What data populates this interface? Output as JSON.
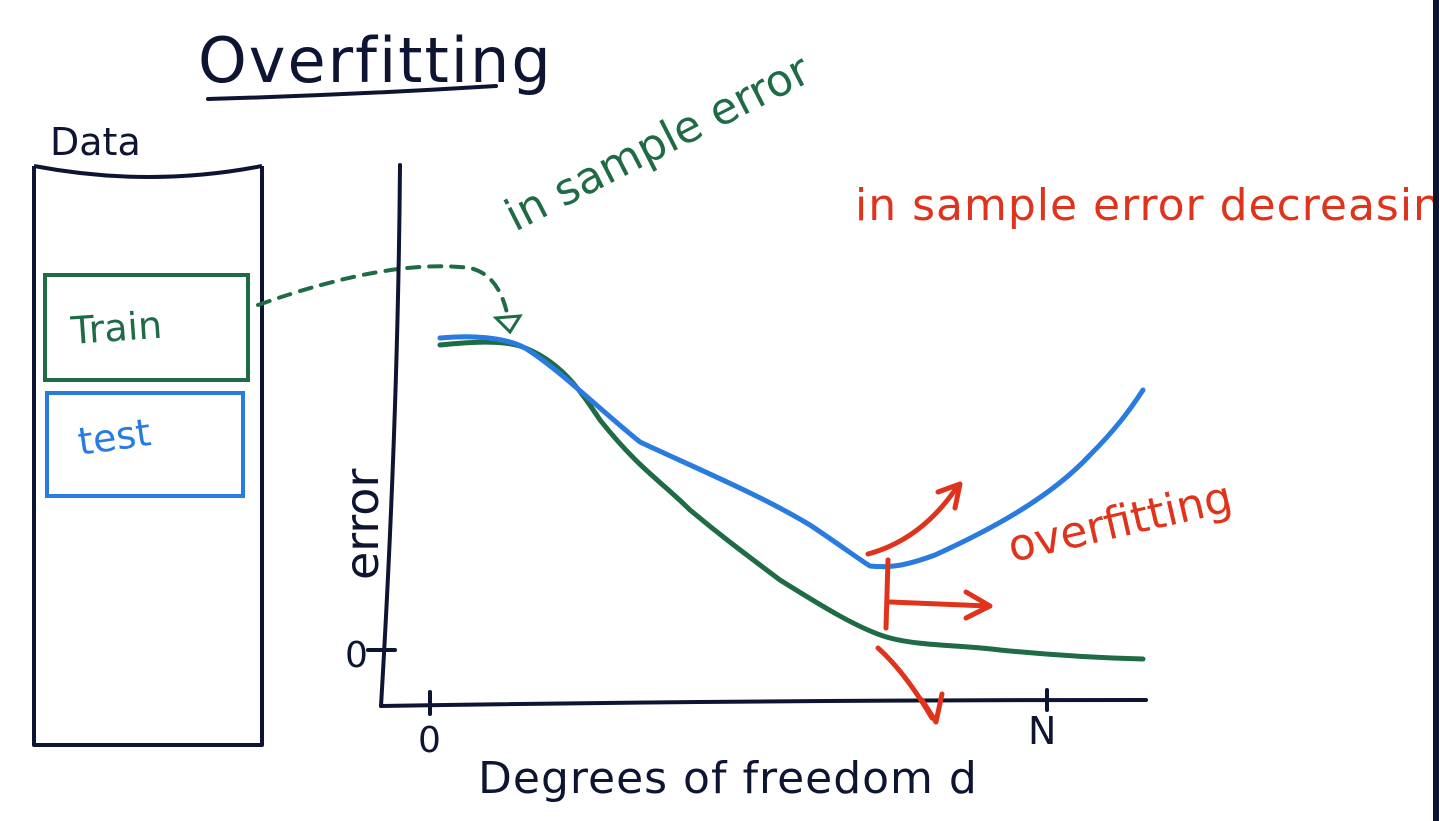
{
  "title": "Overfitting",
  "data_box": {
    "label": "Data",
    "train_label": "Train",
    "test_label": "test"
  },
  "axes": {
    "ylabel": "error",
    "xlabel": "Degrees of freedom d",
    "y_zero_label": "0",
    "x_zero_label": "0",
    "x_max_label": "N"
  },
  "annotations": {
    "in_sample_error": "in sample error",
    "in_sample_error_decreasing": "in sample error decreasing",
    "overfitting": "overfitting"
  },
  "colors": {
    "ink": "#0d1533",
    "train": "#1f6b45",
    "test": "#2a7be0",
    "note": "#e0331c",
    "background": "#ffffff"
  }
}
